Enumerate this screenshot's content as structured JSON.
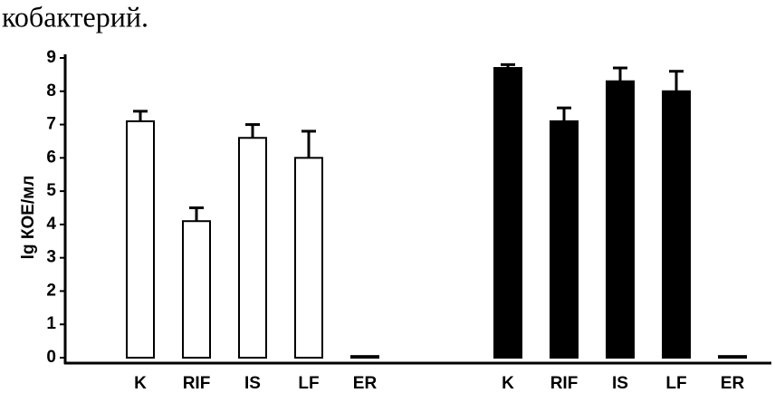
{
  "chart_data": {
    "type": "bar",
    "title": "кобактерий.",
    "y_label": "lg КОЕ/мл",
    "categories": [
      "K",
      "RIF",
      "IS",
      "LF",
      "ER"
    ],
    "series": [
      {
        "color": "#ffffff",
        "values": [
          7.1,
          4.1,
          6.6,
          6.0,
          0.05
        ],
        "errors": [
          0.3,
          0.4,
          0.4,
          0.8,
          0
        ]
      },
      {
        "color": "#000000",
        "values": [
          8.7,
          7.1,
          8.3,
          8.0,
          0.05
        ],
        "errors": [
          0.1,
          0.4,
          0.4,
          0.6,
          0
        ]
      }
    ],
    "ylim": [
      0,
      9
    ],
    "yticks": [
      0,
      1,
      2,
      3,
      4,
      5,
      6,
      7,
      8,
      9
    ],
    "grid": false
  }
}
